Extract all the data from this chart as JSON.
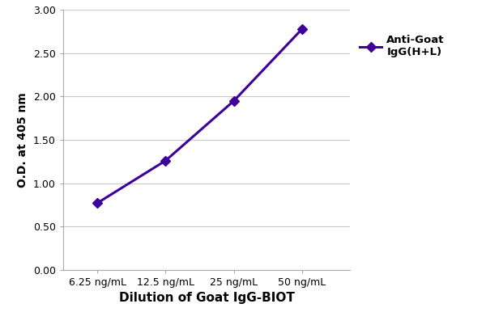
{
  "x_labels": [
    "6.25 ng/mL",
    "12.5 ng/mL",
    "25 ng/mL",
    "50 ng/mL"
  ],
  "x_values": [
    1,
    2,
    3,
    4
  ],
  "y_values": [
    0.77,
    1.26,
    1.95,
    2.78
  ],
  "line_color": "#3d009c",
  "marker": "D",
  "marker_size": 6,
  "line_width": 2.2,
  "xlabel": "Dilution of Goat IgG-BIOT",
  "ylabel": "O.D. at 405 nm",
  "ylim": [
    0.0,
    3.0
  ],
  "yticks": [
    0.0,
    0.5,
    1.0,
    1.5,
    2.0,
    2.5,
    3.0
  ],
  "legend_label": "Anti-Goat\nIgG(H+L)",
  "background_color": "#ffffff",
  "grid_color": "#c8c8c8",
  "xlabel_fontsize": 11,
  "ylabel_fontsize": 10,
  "tick_fontsize": 9,
  "legend_fontsize": 9.5
}
